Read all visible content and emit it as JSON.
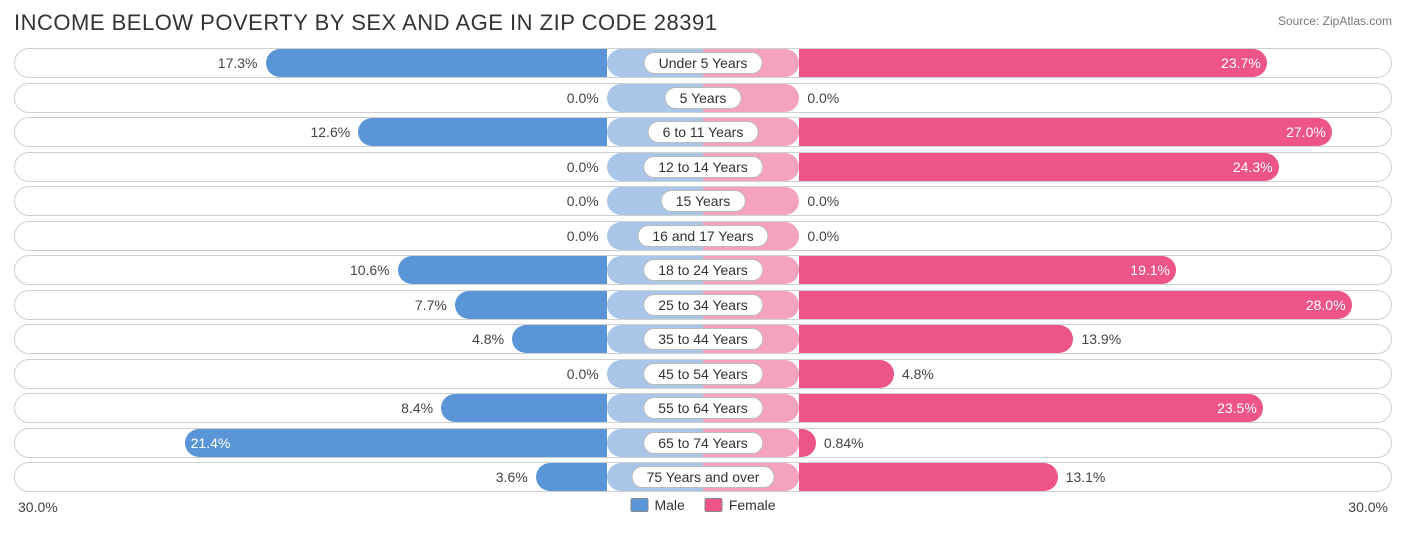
{
  "title": "INCOME BELOW POVERTY BY SEX AND AGE IN ZIP CODE 28391",
  "source": "Source: ZipAtlas.com",
  "axis_max": 30.0,
  "axis_label": "30.0%",
  "colors": {
    "male_bar": "#5a95d8",
    "male_stub": "#a9c6e9",
    "female_bar": "#ed5586",
    "female_stub": "#f5a3bd",
    "border": "#cfcfcf",
    "text": "#444444",
    "background": "#ffffff"
  },
  "stub_pct": 14,
  "legend": {
    "male": "Male",
    "female": "Female"
  },
  "rows": [
    {
      "label": "Under 5 Years",
      "male": 17.3,
      "male_txt": "17.3%",
      "female": 23.7,
      "female_txt": "23.7%"
    },
    {
      "label": "5 Years",
      "male": 0.0,
      "male_txt": "0.0%",
      "female": 0.0,
      "female_txt": "0.0%"
    },
    {
      "label": "6 to 11 Years",
      "male": 12.6,
      "male_txt": "12.6%",
      "female": 27.0,
      "female_txt": "27.0%"
    },
    {
      "label": "12 to 14 Years",
      "male": 0.0,
      "male_txt": "0.0%",
      "female": 24.3,
      "female_txt": "24.3%"
    },
    {
      "label": "15 Years",
      "male": 0.0,
      "male_txt": "0.0%",
      "female": 0.0,
      "female_txt": "0.0%"
    },
    {
      "label": "16 and 17 Years",
      "male": 0.0,
      "male_txt": "0.0%",
      "female": 0.0,
      "female_txt": "0.0%"
    },
    {
      "label": "18 to 24 Years",
      "male": 10.6,
      "male_txt": "10.6%",
      "female": 19.1,
      "female_txt": "19.1%"
    },
    {
      "label": "25 to 34 Years",
      "male": 7.7,
      "male_txt": "7.7%",
      "female": 28.0,
      "female_txt": "28.0%"
    },
    {
      "label": "35 to 44 Years",
      "male": 4.8,
      "male_txt": "4.8%",
      "female": 13.9,
      "female_txt": "13.9%"
    },
    {
      "label": "45 to 54 Years",
      "male": 0.0,
      "male_txt": "0.0%",
      "female": 4.8,
      "female_txt": "4.8%"
    },
    {
      "label": "55 to 64 Years",
      "male": 8.4,
      "male_txt": "8.4%",
      "female": 23.5,
      "female_txt": "23.5%"
    },
    {
      "label": "65 to 74 Years",
      "male": 21.4,
      "male_txt": "21.4%",
      "female": 0.84,
      "female_txt": "0.84%"
    },
    {
      "label": "75 Years and over",
      "male": 3.6,
      "male_txt": "3.6%",
      "female": 13.1,
      "female_txt": "13.1%"
    }
  ]
}
